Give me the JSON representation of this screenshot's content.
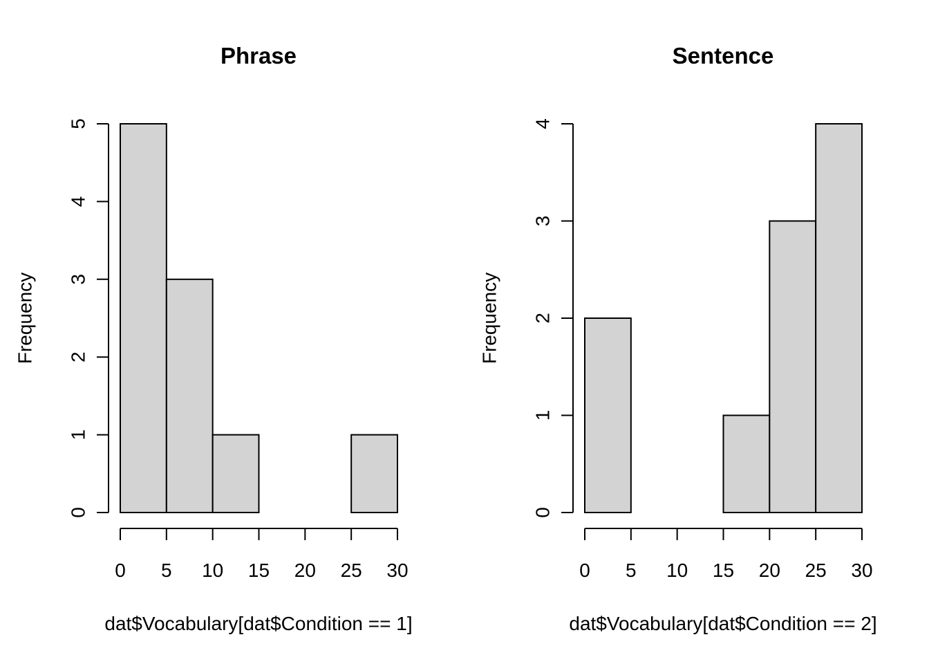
{
  "chart_data": [
    {
      "type": "bar",
      "title": "Phrase",
      "xlabel": "dat$Vocabulary[dat$Condition == 1]",
      "ylabel": "Frequency",
      "bin_edges": [
        0,
        5,
        10,
        15,
        20,
        25,
        30
      ],
      "values": [
        5,
        3,
        1,
        0,
        0,
        1
      ],
      "xticks": [
        "0",
        "5",
        "10",
        "15",
        "20",
        "25",
        "30"
      ],
      "yticks": [
        "0",
        "1",
        "2",
        "3",
        "4",
        "5"
      ],
      "xlim": [
        0,
        30
      ],
      "ylim": [
        0,
        5
      ],
      "bar_color": "#d3d3d3",
      "grid": false
    },
    {
      "type": "bar",
      "title": "Sentence",
      "xlabel": "dat$Vocabulary[dat$Condition == 2]",
      "ylabel": "Frequency",
      "bin_edges": [
        0,
        5,
        10,
        15,
        20,
        25,
        30
      ],
      "values": [
        2,
        0,
        0,
        1,
        3,
        4
      ],
      "xticks": [
        "0",
        "5",
        "10",
        "15",
        "20",
        "25",
        "30"
      ],
      "yticks": [
        "0",
        "1",
        "2",
        "3",
        "4"
      ],
      "xlim": [
        0,
        30
      ],
      "ylim": [
        0,
        4
      ],
      "bar_color": "#d3d3d3",
      "grid": false
    }
  ]
}
